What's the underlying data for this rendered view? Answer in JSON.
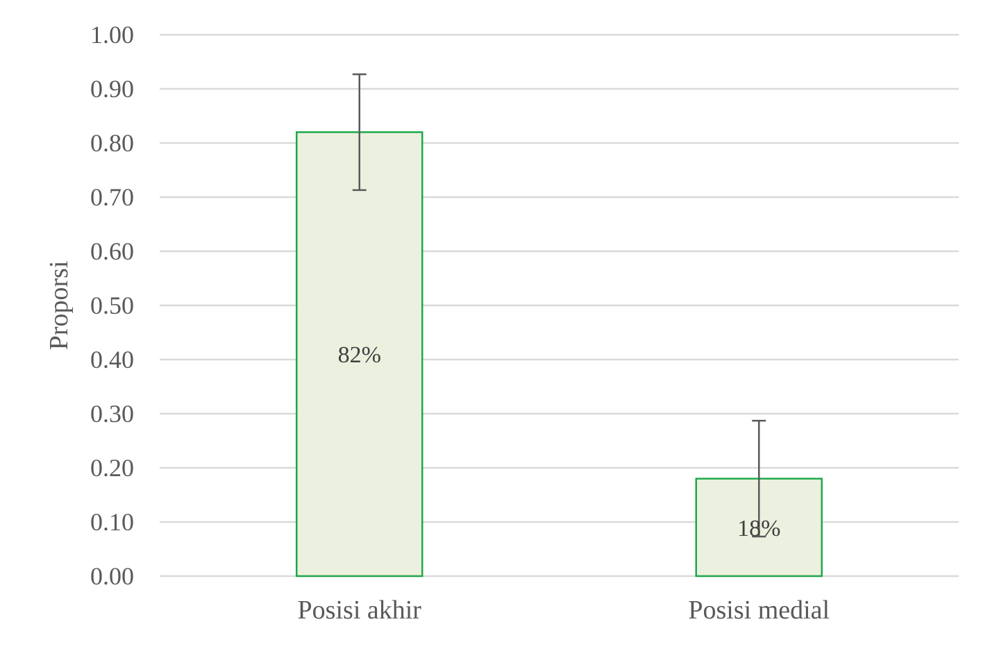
{
  "chart_data": {
    "type": "bar",
    "title": "",
    "xlabel": "",
    "ylabel": "Proporsi",
    "ylim": [
      0,
      1
    ],
    "yticks": [
      "0.00",
      "0.10",
      "0.20",
      "0.30",
      "0.40",
      "0.50",
      "0.60",
      "0.70",
      "0.80",
      "0.90",
      "1.00"
    ],
    "categories": [
      "Posisi akhir",
      "Posisi medial"
    ],
    "values": [
      0.82,
      0.18
    ],
    "data_labels": [
      "82%",
      "18%"
    ],
    "error_bars": [
      {
        "low": 0.713,
        "high": 0.927
      },
      {
        "low": 0.073,
        "high": 0.287
      }
    ],
    "grid": true,
    "legend": "none",
    "colors": {
      "bar_fill": "#ebf0df",
      "bar_stroke": "#1fa84a",
      "gridline": "#d9d9d9",
      "error_bar": "#595959",
      "text": "#595959"
    }
  }
}
